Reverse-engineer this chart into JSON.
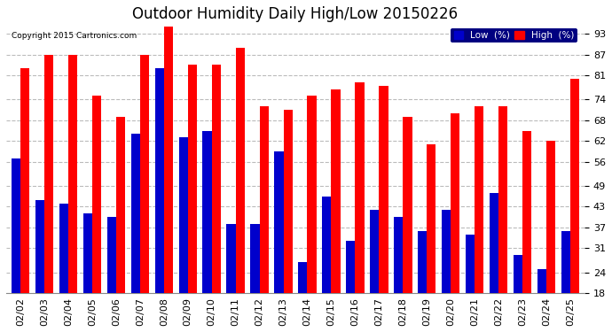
{
  "title": "Outdoor Humidity Daily High/Low 20150226",
  "copyright": "Copyright 2015 Cartronics.com",
  "dates": [
    "02/02",
    "02/03",
    "02/04",
    "02/05",
    "02/06",
    "02/07",
    "02/08",
    "02/09",
    "02/10",
    "02/11",
    "02/12",
    "02/13",
    "02/14",
    "02/15",
    "02/16",
    "02/17",
    "02/18",
    "02/19",
    "02/20",
    "02/21",
    "02/22",
    "02/23",
    "02/24",
    "02/25"
  ],
  "high": [
    83,
    87,
    87,
    75,
    69,
    87,
    95,
    84,
    84,
    89,
    72,
    71,
    75,
    77,
    79,
    78,
    69,
    61,
    70,
    72,
    72,
    65,
    62,
    80
  ],
  "low": [
    57,
    45,
    44,
    41,
    40,
    64,
    83,
    63,
    65,
    38,
    38,
    59,
    27,
    46,
    33,
    42,
    40,
    36,
    42,
    35,
    47,
    29,
    25,
    36
  ],
  "high_color": "#FF0000",
  "low_color": "#0000CC",
  "bg_color": "#FFFFFF",
  "ylim_min": 18,
  "ylim_max": 96,
  "yticks": [
    18,
    24,
    31,
    37,
    43,
    49,
    56,
    62,
    68,
    74,
    81,
    87,
    93
  ],
  "bar_width": 0.38,
  "title_fontsize": 12,
  "tick_fontsize": 8,
  "legend_low_label": "Low  (%)",
  "legend_high_label": "High  (%)"
}
